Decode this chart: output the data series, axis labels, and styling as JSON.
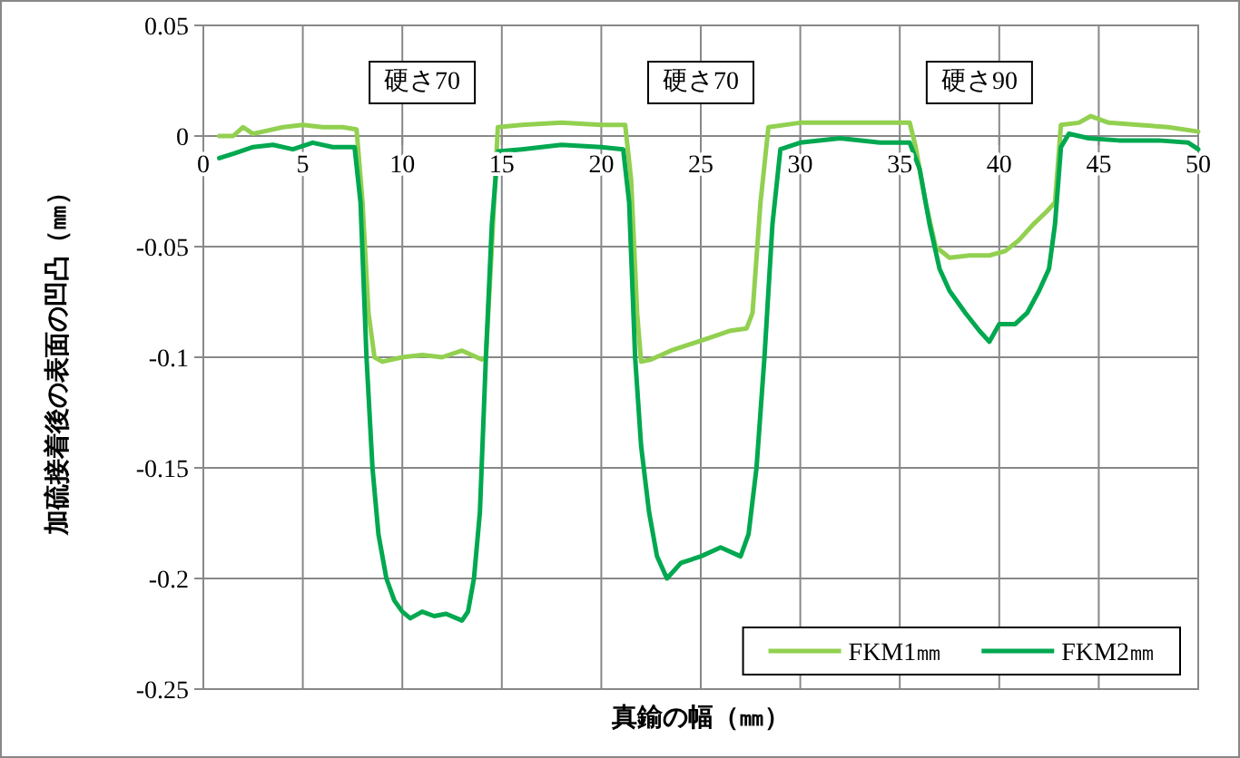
{
  "chart_data": {
    "type": "line",
    "xlabel": "真鍮の幅（㎜）",
    "ylabel": "加硫接着後の表面の凹凸（㎜）",
    "xlim": [
      0,
      50
    ],
    "xticks": [
      0,
      5,
      10,
      15,
      20,
      25,
      30,
      35,
      40,
      45,
      50
    ],
    "ylim": [
      -0.25,
      0.05
    ],
    "yticks": [
      -0.25,
      -0.2,
      -0.15,
      -0.1,
      -0.05,
      0,
      0.05
    ],
    "grid": true,
    "legend": "bottom right",
    "marker": "none",
    "line_style": "solid",
    "annotations": [
      "硬さ70",
      "硬さ70",
      "硬さ90"
    ],
    "series": [
      {
        "name": "FKM1㎜",
        "color": "#92d050",
        "x": [
          0.8,
          1.5,
          2,
          2.5,
          3,
          4,
          5,
          6,
          7,
          7.7,
          8,
          8.3,
          8.6,
          9,
          10,
          11,
          12,
          13,
          14,
          14.2,
          14.5,
          14.8,
          16,
          18,
          20,
          21.2,
          21.5,
          21.8,
          22,
          22.5,
          23.5,
          24.5,
          25.5,
          26.5,
          27.3,
          27.6,
          28,
          28.4,
          30,
          32,
          34,
          35.5,
          35.8,
          36.3,
          36.8,
          37.5,
          38.5,
          39.5,
          40.3,
          41,
          41.7,
          42.4,
          42.8,
          43.1,
          44,
          44.6,
          45.5,
          47,
          48.5,
          50
        ],
        "values": [
          0,
          0,
          0.004,
          0.001,
          0.002,
          0.004,
          0.005,
          0.004,
          0.004,
          0.003,
          -0.03,
          -0.08,
          -0.1,
          -0.102,
          -0.1,
          -0.099,
          -0.1,
          -0.097,
          -0.101,
          -0.1,
          -0.05,
          0.004,
          0.005,
          0.006,
          0.005,
          0.005,
          -0.02,
          -0.08,
          -0.102,
          -0.101,
          -0.097,
          -0.094,
          -0.091,
          -0.088,
          -0.087,
          -0.08,
          -0.03,
          0.004,
          0.006,
          0.006,
          0.006,
          0.006,
          -0.005,
          -0.03,
          -0.05,
          -0.055,
          -0.054,
          -0.054,
          -0.052,
          -0.047,
          -0.04,
          -0.034,
          -0.03,
          0.005,
          0.006,
          0.009,
          0.006,
          0.005,
          0.004,
          0.002
        ]
      },
      {
        "name": "FKM2㎜",
        "color": "#00a850",
        "x": [
          0.8,
          1.5,
          2.5,
          3.5,
          4.5,
          5.5,
          6.5,
          7.6,
          7.9,
          8.2,
          8.5,
          8.8,
          9.2,
          9.6,
          10,
          10.4,
          11,
          11.6,
          12.2,
          13,
          13.3,
          13.6,
          13.9,
          14.2,
          14.5,
          14.8,
          16,
          18,
          20,
          21.1,
          21.4,
          21.7,
          22,
          22.4,
          22.8,
          23.3,
          24,
          25,
          26,
          27,
          27.4,
          27.8,
          28.2,
          28.6,
          29,
          30,
          32,
          34,
          35.5,
          36,
          36.5,
          37,
          37.5,
          38.3,
          39,
          39.5,
          40,
          40.8,
          41.4,
          42,
          42.5,
          42.8,
          43.1,
          43.5,
          44.5,
          46,
          48,
          49.5,
          50
        ],
        "values": [
          -0.01,
          -0.008,
          -0.005,
          -0.004,
          -0.006,
          -0.003,
          -0.005,
          -0.005,
          -0.03,
          -0.1,
          -0.15,
          -0.18,
          -0.2,
          -0.21,
          -0.215,
          -0.218,
          -0.215,
          -0.217,
          -0.216,
          -0.219,
          -0.215,
          -0.2,
          -0.17,
          -0.1,
          -0.04,
          -0.007,
          -0.006,
          -0.004,
          -0.005,
          -0.006,
          -0.03,
          -0.1,
          -0.14,
          -0.17,
          -0.19,
          -0.2,
          -0.193,
          -0.19,
          -0.186,
          -0.19,
          -0.18,
          -0.15,
          -0.1,
          -0.04,
          -0.006,
          -0.003,
          -0.001,
          -0.003,
          -0.003,
          -0.015,
          -0.04,
          -0.06,
          -0.07,
          -0.08,
          -0.088,
          -0.093,
          -0.085,
          -0.085,
          -0.08,
          -0.07,
          -0.06,
          -0.04,
          -0.005,
          0.001,
          -0.001,
          -0.002,
          -0.002,
          -0.003,
          -0.006
        ]
      }
    ]
  }
}
